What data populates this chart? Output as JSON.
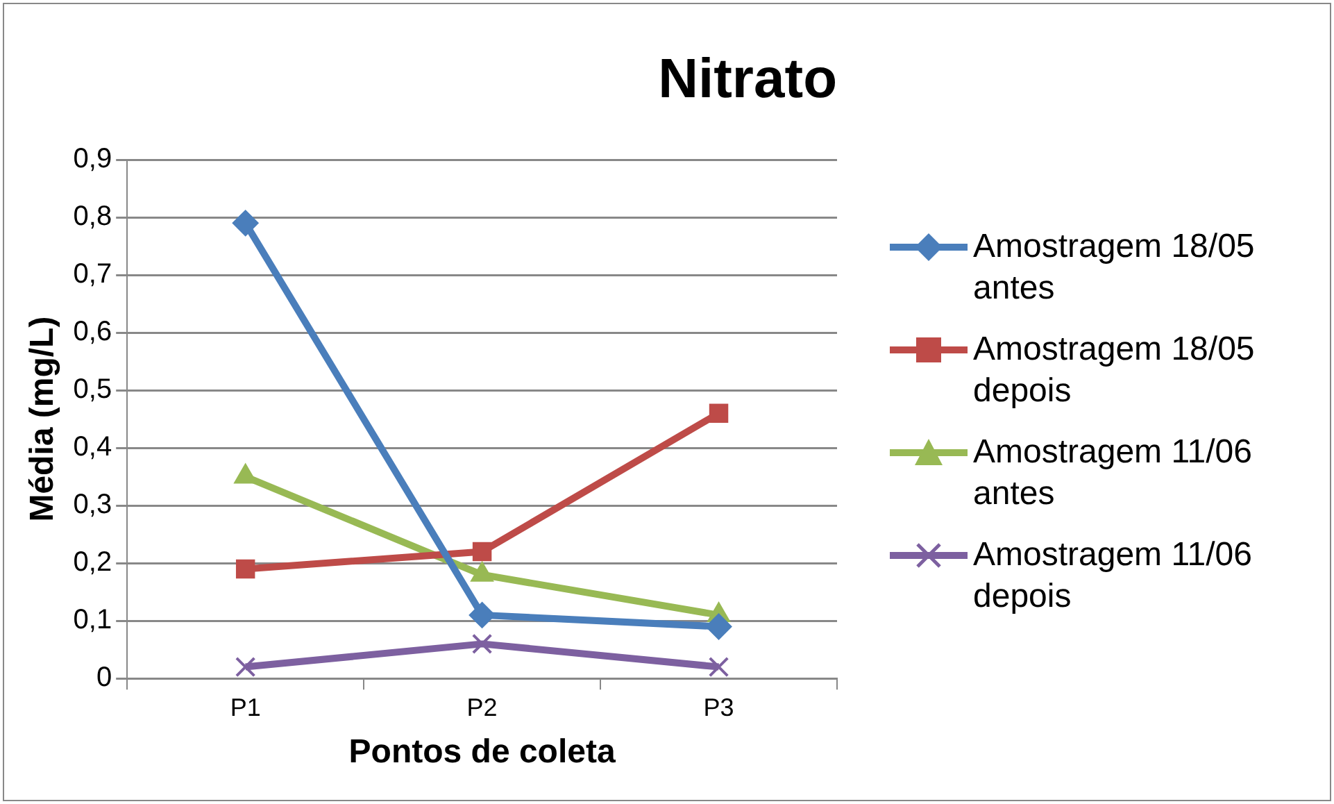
{
  "chart_data": {
    "type": "line",
    "title": "Nitrato",
    "xlabel": "Pontos de coleta",
    "ylabel": "Média (mg/L)",
    "categories": [
      "P1",
      "P2",
      "P3"
    ],
    "series": [
      {
        "name": "Amostragem 18/05 antes",
        "color": "#4a7ebb",
        "marker": "diamond",
        "values": [
          0.79,
          0.11,
          0.09
        ]
      },
      {
        "name": "Amostragem 18/05 depois",
        "color": "#be4b48",
        "marker": "square",
        "values": [
          0.19,
          0.22,
          0.46
        ]
      },
      {
        "name": "Amostragem 11/06 antes",
        "color": "#98b954",
        "marker": "triangle",
        "values": [
          0.35,
          0.18,
          0.11
        ]
      },
      {
        "name": "Amostragem 11/06 depois",
        "color": "#7d60a0",
        "marker": "cross",
        "values": [
          0.02,
          0.06,
          0.02
        ]
      }
    ],
    "ylim": [
      0,
      0.9
    ],
    "yticks": [
      {
        "value": 0,
        "label": "0"
      },
      {
        "value": 0.1,
        "label": "0,1"
      },
      {
        "value": 0.2,
        "label": "0,2"
      },
      {
        "value": 0.3,
        "label": "0,3"
      },
      {
        "value": 0.4,
        "label": "0,4"
      },
      {
        "value": 0.5,
        "label": "0,5"
      },
      {
        "value": 0.6,
        "label": "0,6"
      },
      {
        "value": 0.7,
        "label": "0,7"
      },
      {
        "value": 0.8,
        "label": "0,8"
      },
      {
        "value": 0.9,
        "label": "0,9"
      }
    ],
    "grid": "y",
    "legend": "right"
  }
}
